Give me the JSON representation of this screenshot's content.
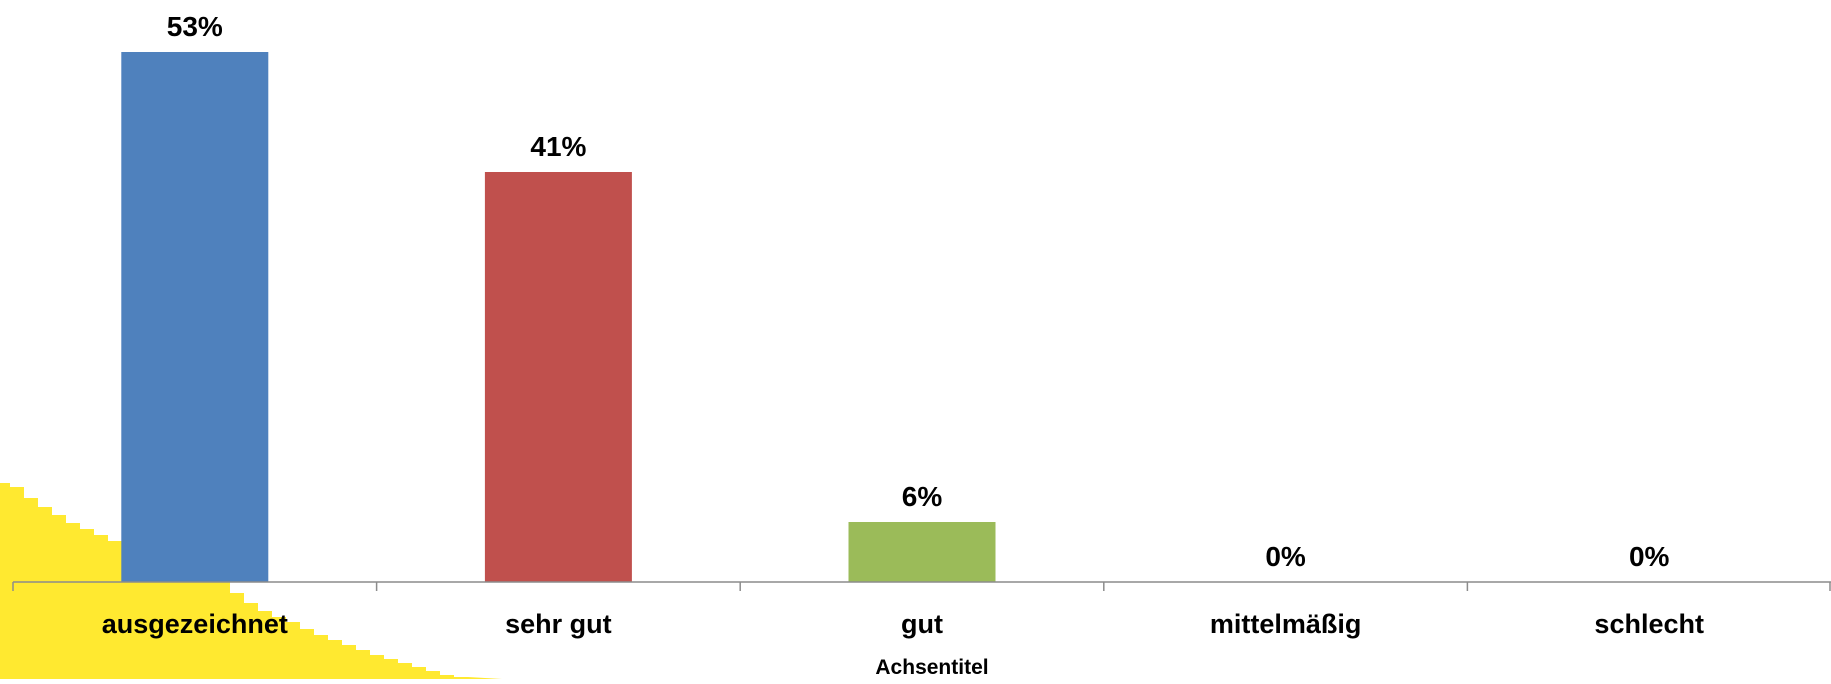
{
  "chart_data": {
    "type": "bar",
    "xlabel": "Achsentitel",
    "categories": [
      "ausgezeichnet",
      "sehr gut",
      "gut",
      "mittelmäßig",
      "schlecht"
    ],
    "values": [
      53,
      41,
      6,
      0,
      0
    ],
    "value_labels": [
      "53%",
      "41%",
      "6%",
      "0%",
      "0%"
    ],
    "bar_colors": [
      "#4F81BD",
      "#C0504D",
      "#9BBB59",
      "#8064A2",
      "#4BACC6"
    ],
    "ylim": [
      0,
      53
    ],
    "grid": false,
    "legend": "none"
  },
  "decoration": {
    "accent_color": "#FFE930"
  }
}
